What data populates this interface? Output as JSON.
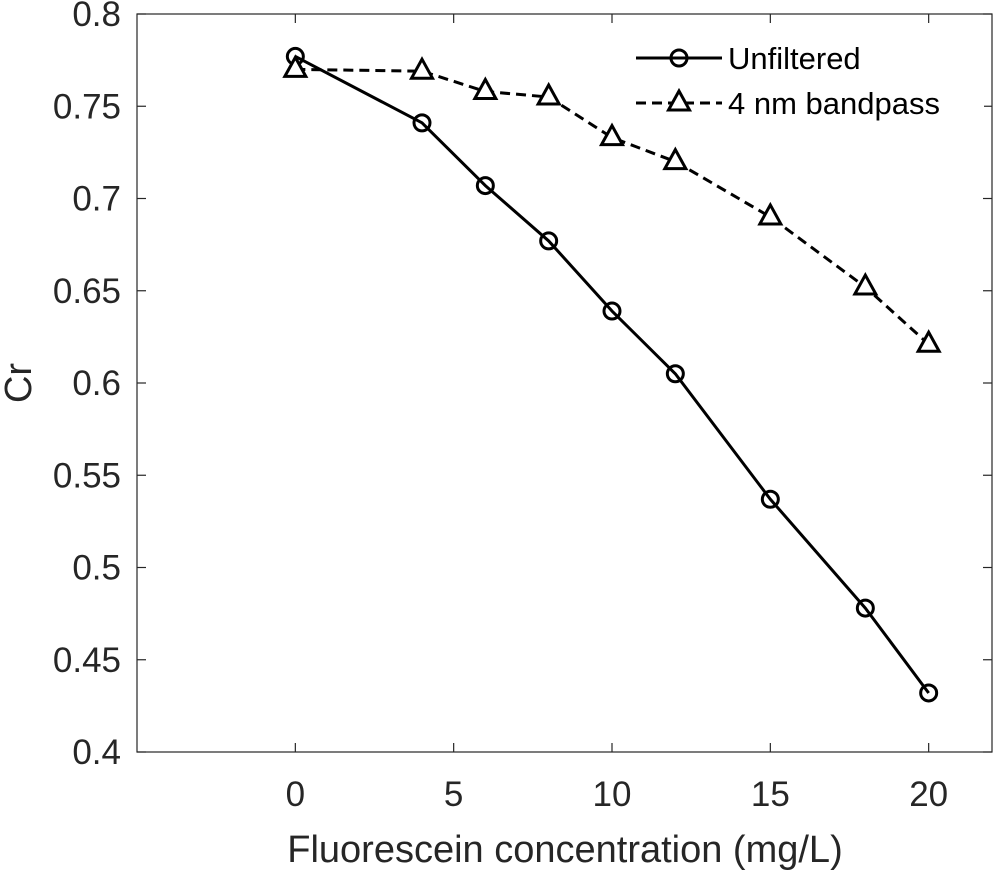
{
  "chart_data": {
    "type": "line",
    "title": "",
    "xlabel": "Fluorescein concentration (mg/L)",
    "ylabel": "Cr",
    "xlim": [
      -5,
      22
    ],
    "ylim": [
      0.4,
      0.8
    ],
    "xticks": [
      0,
      5,
      10,
      15,
      20
    ],
    "xtick_labels": [
      "0",
      "5",
      "10",
      "15",
      "20"
    ],
    "yticks": [
      0.4,
      0.45,
      0.5,
      0.55,
      0.6,
      0.65,
      0.7,
      0.75,
      0.8
    ],
    "ytick_labels": [
      "0.4",
      "0.45",
      "0.5",
      "0.55",
      "0.6",
      "0.65",
      "0.7",
      "0.75",
      "0.8"
    ],
    "grid": false,
    "legend_position": "top-right",
    "series": [
      {
        "name": "Unfiltered",
        "line_style": "solid",
        "marker": "circle",
        "color": "#000000",
        "x": [
          0,
          4,
          6,
          8,
          10,
          12,
          15,
          18,
          20
        ],
        "y": [
          0.777,
          0.741,
          0.707,
          0.677,
          0.639,
          0.605,
          0.537,
          0.478,
          0.432
        ]
      },
      {
        "name": "4 nm bandpass",
        "line_style": "dashed",
        "marker": "triangle",
        "color": "#000000",
        "x": [
          0,
          4,
          6,
          8,
          10,
          12,
          15,
          18,
          20
        ],
        "y": [
          0.77,
          0.769,
          0.758,
          0.755,
          0.733,
          0.72,
          0.69,
          0.652,
          0.621
        ]
      }
    ]
  }
}
